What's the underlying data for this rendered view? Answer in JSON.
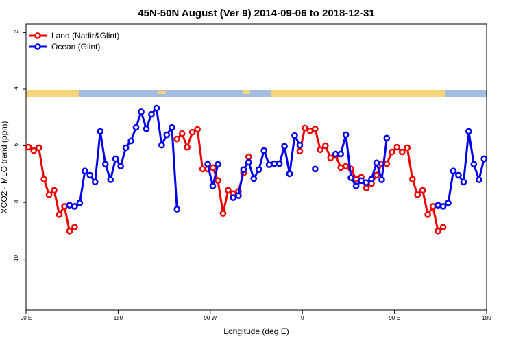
{
  "chart_data": {
    "type": "line",
    "title": "45N-50N August (Ver 9)   2014-09-06 to 2018-12-31",
    "x_label": "Longitude (deg E)",
    "y_label": "XCO2 - MLO trend (ppm)",
    "xlim": [
      90,
      540
    ],
    "xticks": [
      {
        "value": 90,
        "label": "90 E"
      },
      180,
      {
        "value": 270,
        "label": "90 W"
      },
      {
        "value": 360,
        "label": "0"
      },
      {
        "value": 450,
        "label": "90 E"
      },
      {
        "value": 540,
        "label": "180"
      }
    ],
    "ylim": [
      -11.8,
      -1.7
    ],
    "yticks": [
      -10,
      -8,
      -6,
      -4,
      -2
    ],
    "legend": "top-left",
    "x": [
      92.5,
      97.5,
      102.5,
      107.5,
      112.5,
      117.5,
      122.5,
      127.5,
      132.5,
      137.5,
      142.5,
      147.5,
      152.5,
      157.5,
      162.5,
      167.5,
      172.5,
      177.5,
      182.5,
      187.5,
      192.5,
      197.5,
      202.5,
      207.5,
      212.5,
      217.5,
      222.5,
      227.5,
      232.5,
      237.5,
      242.5,
      247.5,
      252.5,
      257.5,
      262.5,
      267.5,
      272.5,
      277.5,
      282.5,
      287.5,
      292.5,
      297.5,
      302.5,
      307.5,
      312.5,
      317.5,
      322.5,
      327.5,
      332.5,
      337.5,
      342.5,
      347.5,
      352.5,
      357.5,
      362.5,
      367.5,
      372.5,
      377.5,
      382.5,
      387.5,
      392.5,
      397.5,
      402.5,
      407.5,
      412.5,
      417.5,
      422.5,
      427.5,
      432.5,
      437.5,
      442.5,
      447.5,
      452.5,
      457.5,
      462.5,
      467.5,
      472.5,
      477.5,
      482.5,
      487.5,
      492.5,
      497.5,
      502.5,
      507.5,
      512.5,
      517.5,
      522.5,
      527.5,
      532.5,
      537.5
    ],
    "series": [
      {
        "name": "Land (Nadir&Glint)",
        "color": "#ee0000",
        "values": [
          -6.05,
          -6.17,
          -6.07,
          -7.18,
          -7.73,
          -7.57,
          -8.43,
          -8.14,
          -9.01,
          -8.87,
          null,
          null,
          null,
          null,
          null,
          null,
          null,
          null,
          null,
          null,
          null,
          null,
          null,
          null,
          null,
          null,
          null,
          null,
          null,
          -5.76,
          -5.57,
          -6.05,
          -5.52,
          -5.42,
          -6.82,
          -6.82,
          -6.77,
          -7.23,
          -8.39,
          -7.57,
          -7.69,
          -7.61,
          -6.96,
          -6.39,
          null,
          null,
          null,
          null,
          null,
          null,
          null,
          null,
          null,
          -6.19,
          -5.37,
          -5.47,
          -5.4,
          -6.14,
          -6.0,
          -6.43,
          -6.34,
          -6.77,
          -6.72,
          -6.82,
          -7.18,
          -7.11,
          -7.49,
          -7.33,
          -7.04,
          -6.63,
          -6.63,
          -6.22,
          -6.05,
          -6.22,
          -6.07,
          -7.18,
          -7.73,
          -7.57,
          -8.43,
          -8.14,
          -9.01,
          -8.87,
          null,
          null,
          null,
          null,
          null,
          null,
          null,
          null
        ]
      },
      {
        "name": "Ocean (Glint)",
        "color": "#0000ee",
        "values": [
          null,
          null,
          null,
          null,
          null,
          null,
          null,
          null,
          -8.1,
          -8.14,
          -8.02,
          -6.89,
          -7.04,
          -7.28,
          -5.49,
          -6.65,
          -7.2,
          -6.46,
          -6.72,
          -6.07,
          -5.83,
          -5.35,
          -4.8,
          -5.4,
          -4.89,
          -4.67,
          -5.98,
          -5.61,
          -5.35,
          -8.24,
          null,
          null,
          null,
          null,
          null,
          -6.65,
          -7.42,
          -6.65,
          null,
          null,
          -7.83,
          -7.76,
          -6.84,
          -6.58,
          -7.16,
          -6.84,
          -6.17,
          -6.67,
          -6.63,
          -6.63,
          -6.02,
          -6.99,
          -5.64,
          -5.98,
          null,
          null,
          -6.82,
          null,
          null,
          null,
          -6.29,
          -6.29,
          -5.61,
          -7.13,
          -7.42,
          -7.23,
          -7.3,
          -7.18,
          -6.6,
          -7.2,
          -5.73,
          null,
          null,
          null,
          null,
          null,
          null,
          null,
          null,
          null,
          -8.1,
          -8.14,
          -8.02,
          -6.89,
          -7.04,
          -7.28,
          -5.49,
          -6.65,
          -7.2,
          -6.46
        ]
      }
    ]
  }
}
